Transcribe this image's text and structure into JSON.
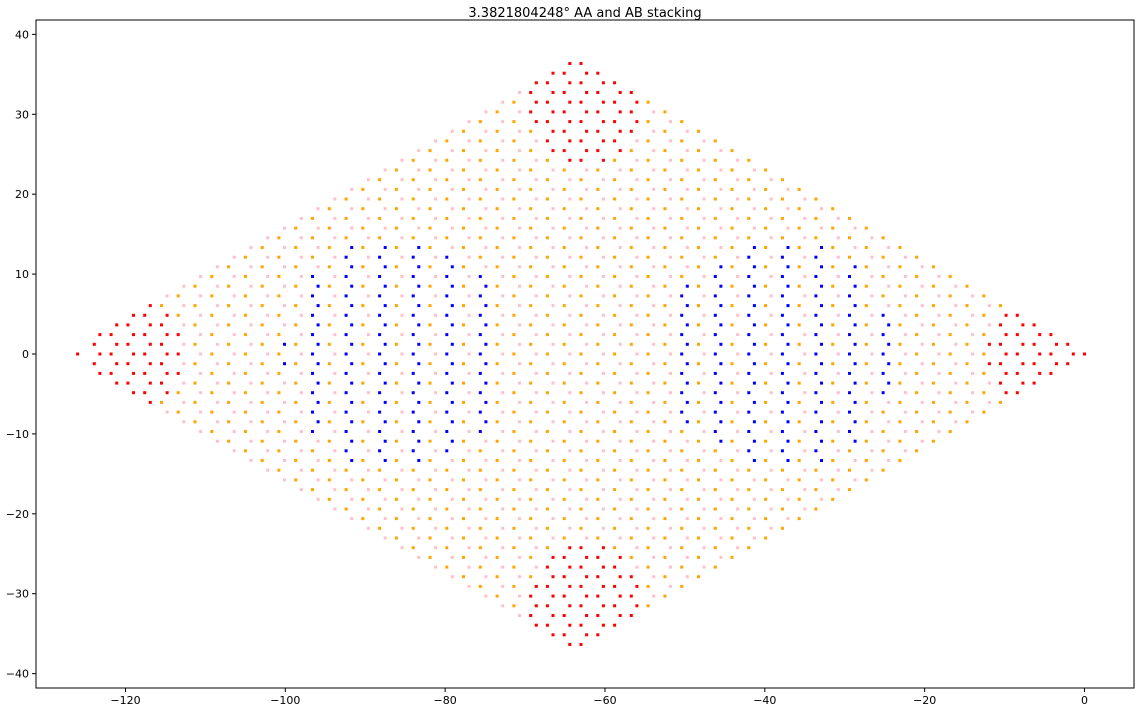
{
  "chart_data": {
    "type": "scatter",
    "title": "3.3821804248° AA and AB stacking",
    "xlabel": "",
    "ylabel": "",
    "xlim": [
      -131.2,
      6.2
    ],
    "ylim": [
      -41.8,
      41.8
    ],
    "x_ticks": [
      -120,
      -100,
      -80,
      -60,
      -40,
      -20,
      0
    ],
    "y_ticks": [
      -40,
      -30,
      -20,
      -10,
      0,
      10,
      20,
      30,
      40
    ],
    "x_tick_labels": [
      "−120",
      "−100",
      "−80",
      "−60",
      "−40",
      "−20",
      "0"
    ],
    "y_tick_labels": [
      "−40",
      "−30",
      "−20",
      "−10",
      "0",
      "10",
      "20",
      "30",
      "40"
    ],
    "grid": false,
    "legend": "none",
    "lattice": {
      "angle_deg": 3.3821804248,
      "origin": [
        0,
        0
      ],
      "a1": [
        -2.1,
        1.212
      ],
      "a2": [
        -2.1,
        -1.212
      ],
      "n": 30,
      "sublattice_offset": [
        -1.4,
        0
      ]
    },
    "series": [
      {
        "color": "#ffa500",
        "region": "orange"
      },
      {
        "color": "#ffc0cb",
        "region": "pink"
      },
      {
        "color": "#0000ff",
        "region": "blue"
      },
      {
        "color": "#ff0000",
        "region": "red"
      }
    ],
    "regions": {
      "red_centers": [
        [
          -62.5,
          30.5
        ],
        [
          -62.5,
          -30.5
        ],
        [
          -120,
          0
        ],
        [
          -5,
          0
        ]
      ],
      "red_radius": 7.2,
      "blue_centers": [
        [
          -86,
          0
        ],
        [
          -38,
          0
        ]
      ],
      "blue_radius": 14.5
    }
  }
}
